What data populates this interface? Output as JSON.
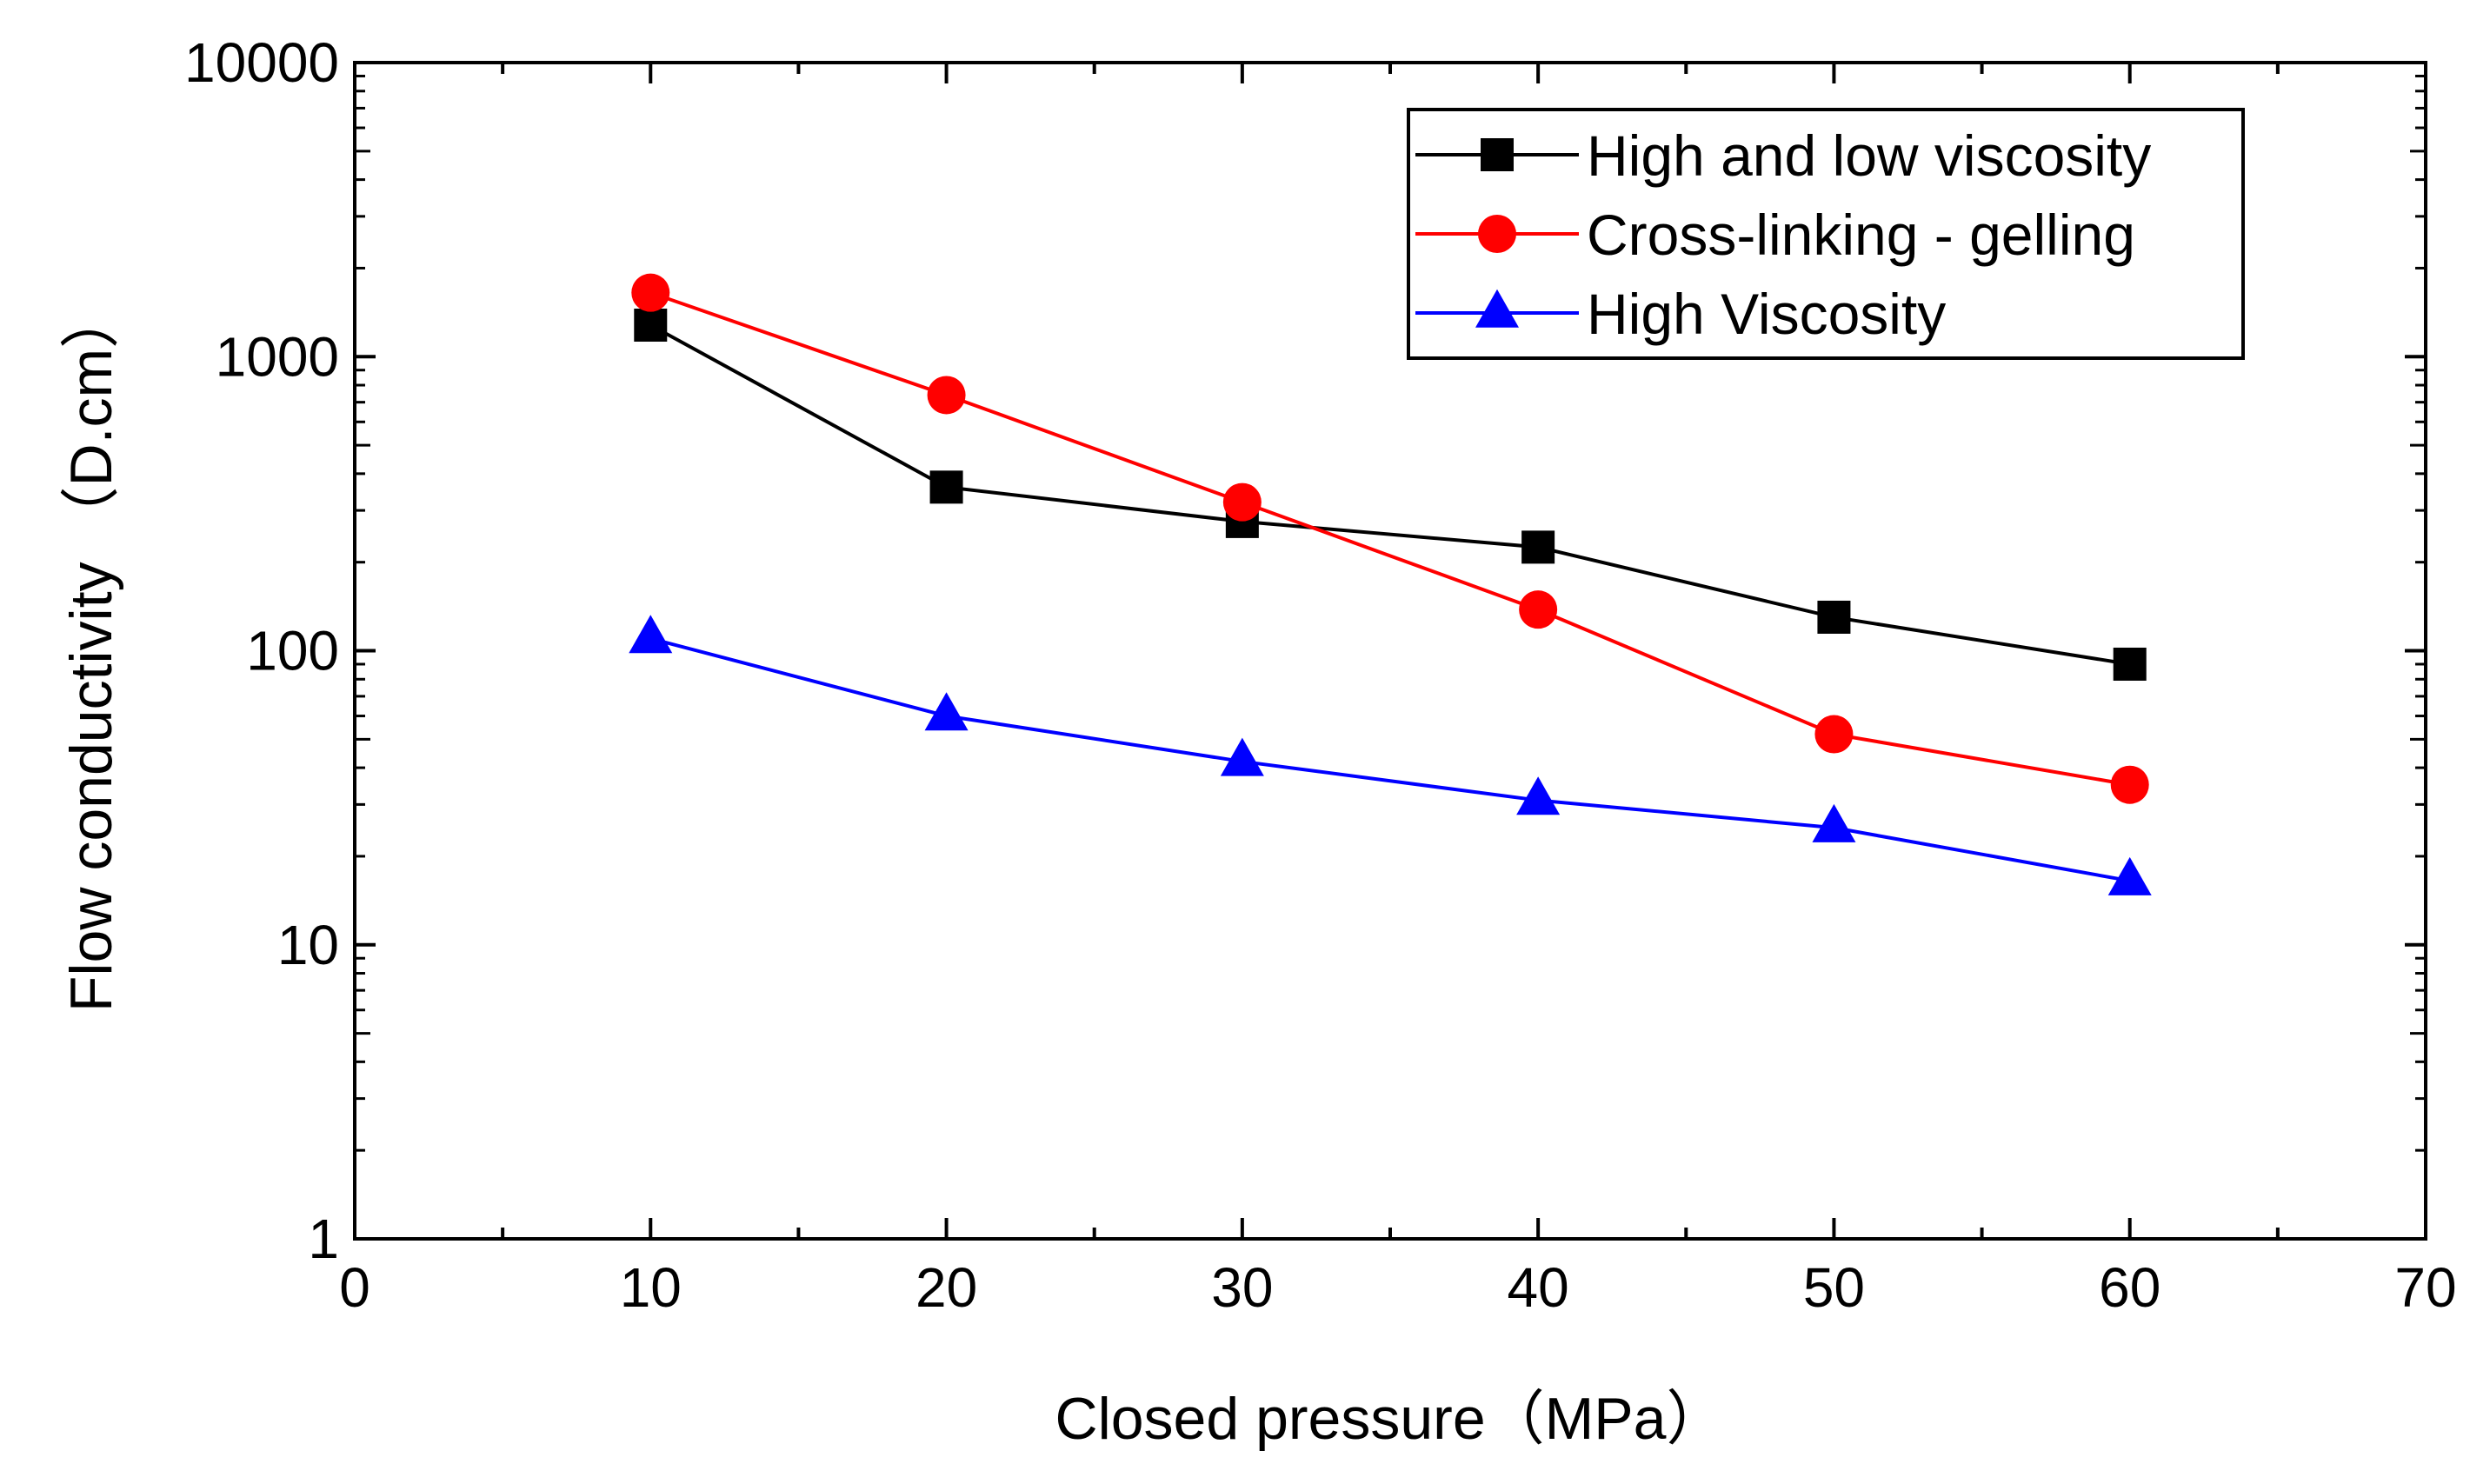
{
  "chart_data": {
    "type": "line",
    "title": "",
    "xlabel": "Closed pressure（MPa）",
    "ylabel": "Flow conductivity （D.cm）",
    "x": [
      10,
      20,
      30,
      40,
      50,
      60
    ],
    "xlim": [
      0,
      70
    ],
    "xticks": [
      0,
      10,
      20,
      30,
      40,
      50,
      60,
      70
    ],
    "xtick_labels": [
      "0",
      "10",
      "20",
      "30",
      "40",
      "50",
      "60",
      "70"
    ],
    "yscale": "log",
    "ylim": [
      1,
      10000
    ],
    "yticks": [
      1,
      10,
      100,
      1000,
      10000
    ],
    "ytick_labels": [
      "1",
      "10",
      "100",
      "1000",
      "10000"
    ],
    "grid": false,
    "legend_position": "top-right",
    "series": [
      {
        "name": "High and low viscosity",
        "color": "#000000",
        "marker": "square",
        "values": [
          1280,
          360,
          275,
          225,
          130,
          90
        ]
      },
      {
        "name": "Cross-linking - gelling",
        "color": "#ff0000",
        "marker": "circle",
        "values": [
          1650,
          740,
          320,
          138,
          52,
          35
        ]
      },
      {
        "name": "High Viscosity",
        "color": "#0000ff",
        "marker": "triangle",
        "values": [
          110,
          60,
          42,
          31,
          25,
          16.5
        ]
      }
    ]
  }
}
